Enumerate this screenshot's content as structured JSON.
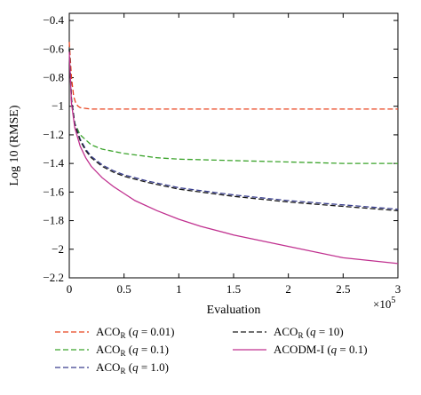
{
  "chart_data": {
    "type": "line",
    "xlabel": "Evaluation",
    "ylabel": "Log 10 (RMSE)",
    "x_exponent_label": "×10",
    "x_exponent_power": "5",
    "xlim": [
      0,
      3
    ],
    "ylim": [
      -2.2,
      -0.35
    ],
    "x_ticks": [
      0,
      0.5,
      1,
      1.5,
      2,
      2.5,
      3
    ],
    "x_tick_labels": [
      "0",
      "0.5",
      "1",
      "1.5",
      "2",
      "2.5",
      "3"
    ],
    "y_ticks": [
      -2.2,
      -2,
      -1.8,
      -1.6,
      -1.4,
      -1.2,
      -1,
      -0.8,
      -0.6,
      -0.4
    ],
    "y_tick_labels": [
      "−2.2",
      "−2",
      "−1.8",
      "−1.6",
      "−1.4",
      "−1.2",
      "−1",
      "−0.8",
      "−0.6",
      "−0.4"
    ],
    "grid": false,
    "legend_position": "bottom",
    "series": [
      {
        "name": "ACOR (q = 0.01)",
        "legend_base": "ACO",
        "legend_sub": "R",
        "legend_param": "q = 0.01",
        "color": "#e8431f",
        "dash": "dashed",
        "x": [
          0,
          0.02,
          0.04,
          0.06,
          0.08,
          0.1,
          0.2,
          0.5,
          1,
          2,
          3
        ],
        "y": [
          -0.55,
          -0.8,
          -0.93,
          -0.98,
          -1.0,
          -1.01,
          -1.02,
          -1.02,
          -1.02,
          -1.02,
          -1.02
        ]
      },
      {
        "name": "ACOR (q = 0.1)",
        "legend_base": "ACO",
        "legend_sub": "R",
        "legend_param": "q = 0.1",
        "color": "#3aa32a",
        "dash": "dashed",
        "x": [
          0,
          0.02,
          0.05,
          0.1,
          0.2,
          0.3,
          0.5,
          0.8,
          1,
          1.5,
          2,
          2.5,
          3
        ],
        "y": [
          -0.6,
          -0.95,
          -1.12,
          -1.2,
          -1.27,
          -1.3,
          -1.33,
          -1.36,
          -1.37,
          -1.38,
          -1.39,
          -1.4,
          -1.4
        ]
      },
      {
        "name": "ACOR (q = 1.0)",
        "legend_base": "ACO",
        "legend_sub": "R",
        "legend_param": "q = 1.0",
        "color": "#3a3f8e",
        "dash": "dashed",
        "x": [
          0,
          0.02,
          0.05,
          0.1,
          0.15,
          0.2,
          0.3,
          0.4,
          0.5,
          0.7,
          1,
          1.5,
          2,
          2.5,
          3
        ],
        "y": [
          -0.6,
          -0.95,
          -1.12,
          -1.23,
          -1.3,
          -1.35,
          -1.41,
          -1.45,
          -1.48,
          -1.52,
          -1.57,
          -1.62,
          -1.66,
          -1.69,
          -1.72
        ]
      },
      {
        "name": "ACOR (q = 10)",
        "legend_base": "ACO",
        "legend_sub": "R",
        "legend_param": "q = 10",
        "color": "#1a1a1a",
        "dash": "dashed",
        "x": [
          0,
          0.02,
          0.05,
          0.1,
          0.15,
          0.2,
          0.3,
          0.4,
          0.5,
          0.7,
          1,
          1.5,
          2,
          2.5,
          3
        ],
        "y": [
          -0.6,
          -0.96,
          -1.13,
          -1.24,
          -1.31,
          -1.36,
          -1.42,
          -1.46,
          -1.49,
          -1.53,
          -1.58,
          -1.63,
          -1.67,
          -1.7,
          -1.73
        ]
      },
      {
        "name": "ACODM-I (q = 0.1)",
        "legend_base": "ACODM-I",
        "legend_sub": "",
        "legend_param": "q = 0.1",
        "color": "#c0308f",
        "dash": "solid",
        "x": [
          0,
          0.02,
          0.05,
          0.1,
          0.15,
          0.2,
          0.3,
          0.4,
          0.5,
          0.6,
          0.8,
          1,
          1.2,
          1.5,
          2,
          2.5,
          3
        ],
        "y": [
          -0.62,
          -0.98,
          -1.15,
          -1.28,
          -1.36,
          -1.42,
          -1.5,
          -1.56,
          -1.61,
          -1.66,
          -1.73,
          -1.79,
          -1.84,
          -1.9,
          -1.98,
          -2.06,
          -2.1
        ]
      }
    ]
  }
}
